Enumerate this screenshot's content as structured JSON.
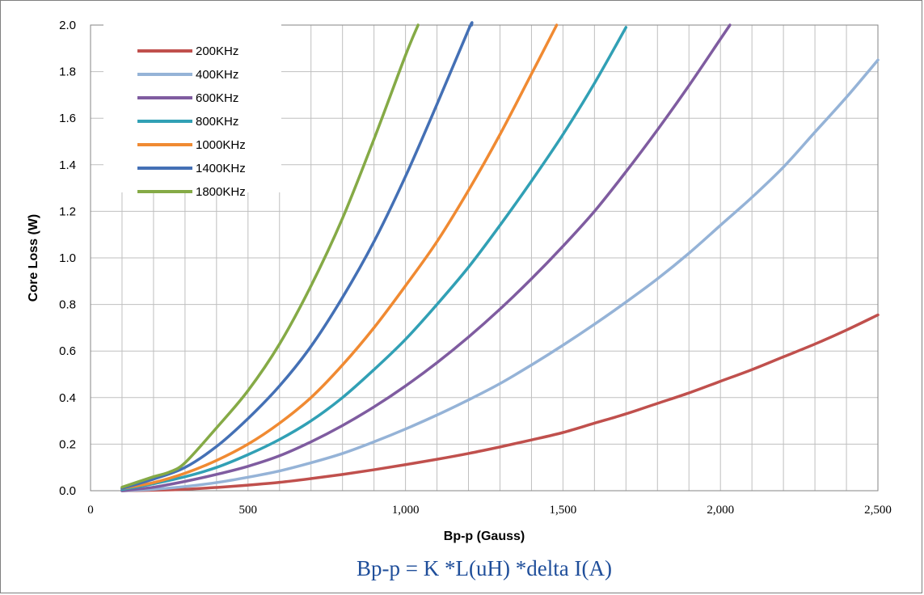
{
  "chart_data": {
    "type": "line",
    "title": "",
    "xlabel": "Bp-p (Gauss)",
    "ylabel": "Core Loss (W)",
    "xlim": [
      0,
      2500
    ],
    "ylim": [
      0,
      2.0
    ],
    "x_ticks": [
      "0",
      "500",
      "1,000",
      "1,500",
      "2,000",
      "2,500"
    ],
    "y_ticks": [
      "0.0",
      "0.2",
      "0.4",
      "0.6",
      "0.8",
      "1.0",
      "1.2",
      "1.4",
      "1.6",
      "1.8",
      "2.0"
    ],
    "grid": true,
    "legend_position": "top-left",
    "annotation": "Bp-p = K *L(uH) *delta I(A)",
    "series": [
      {
        "name": "200KHz",
        "color": "#c0504d",
        "x": [
          100,
          200,
          300,
          400,
          500,
          600,
          700,
          800,
          900,
          1000,
          1100,
          1200,
          1300,
          1400,
          1500,
          1600,
          1700,
          1800,
          1900,
          2000,
          2100,
          2200,
          2300,
          2400,
          2500
        ],
        "y": [
          0.0,
          0.002,
          0.006,
          0.014,
          0.024,
          0.036,
          0.052,
          0.07,
          0.09,
          0.112,
          0.135,
          0.16,
          0.188,
          0.218,
          0.25,
          0.29,
          0.33,
          0.375,
          0.42,
          0.47,
          0.52,
          0.575,
          0.63,
          0.69,
          0.755
        ]
      },
      {
        "name": "400KHz",
        "color": "#95b3d7",
        "x": [
          100,
          200,
          300,
          400,
          500,
          600,
          700,
          800,
          900,
          1000,
          1100,
          1200,
          1300,
          1400,
          1500,
          1600,
          1700,
          1800,
          1900,
          2000,
          2100,
          2200,
          2300,
          2400,
          2500
        ],
        "y": [
          0.0,
          0.006,
          0.018,
          0.035,
          0.058,
          0.085,
          0.12,
          0.16,
          0.21,
          0.265,
          0.325,
          0.39,
          0.46,
          0.54,
          0.625,
          0.715,
          0.81,
          0.91,
          1.02,
          1.14,
          1.26,
          1.39,
          1.54,
          1.69,
          1.85
        ]
      },
      {
        "name": "600KHz",
        "color": "#7f5ca0",
        "x": [
          100,
          200,
          300,
          400,
          500,
          600,
          700,
          800,
          900,
          1000,
          1100,
          1200,
          1300,
          1400,
          1500,
          1600,
          1700,
          1800,
          1900,
          2000,
          2030
        ],
        "y": [
          0.0,
          0.015,
          0.04,
          0.07,
          0.105,
          0.15,
          0.21,
          0.28,
          0.36,
          0.45,
          0.55,
          0.66,
          0.78,
          0.91,
          1.05,
          1.2,
          1.37,
          1.55,
          1.74,
          1.94,
          2.0
        ]
      },
      {
        "name": "800KHz",
        "color": "#31a0b5",
        "x": [
          100,
          200,
          300,
          400,
          500,
          600,
          700,
          800,
          900,
          1000,
          1100,
          1200,
          1300,
          1400,
          1500,
          1600,
          1700
        ],
        "y": [
          0.005,
          0.03,
          0.06,
          0.1,
          0.155,
          0.22,
          0.3,
          0.4,
          0.52,
          0.65,
          0.8,
          0.96,
          1.14,
          1.33,
          1.53,
          1.75,
          1.99
        ]
      },
      {
        "name": "1000KHz",
        "color": "#f08a32",
        "x": [
          100,
          200,
          300,
          400,
          500,
          600,
          700,
          800,
          900,
          1000,
          1100,
          1200,
          1300,
          1400,
          1480
        ],
        "y": [
          0.01,
          0.035,
          0.075,
          0.13,
          0.2,
          0.29,
          0.4,
          0.54,
          0.7,
          0.88,
          1.07,
          1.29,
          1.53,
          1.79,
          2.0
        ]
      },
      {
        "name": "1400KHz",
        "color": "#4470b5",
        "x": [
          100,
          200,
          300,
          400,
          500,
          600,
          700,
          800,
          900,
          1000,
          1100,
          1200,
          1210
        ],
        "y": [
          0.01,
          0.05,
          0.1,
          0.19,
          0.31,
          0.45,
          0.62,
          0.83,
          1.07,
          1.35,
          1.66,
          1.98,
          2.0
        ]
      },
      {
        "name": "1800KHz",
        "color": "#85aa46",
        "x": [
          100,
          200,
          250,
          300,
          400,
          500,
          600,
          700,
          800,
          900,
          1000,
          1040
        ],
        "y": [
          0.015,
          0.06,
          0.08,
          0.12,
          0.27,
          0.43,
          0.63,
          0.88,
          1.17,
          1.51,
          1.87,
          2.0
        ]
      }
    ]
  }
}
